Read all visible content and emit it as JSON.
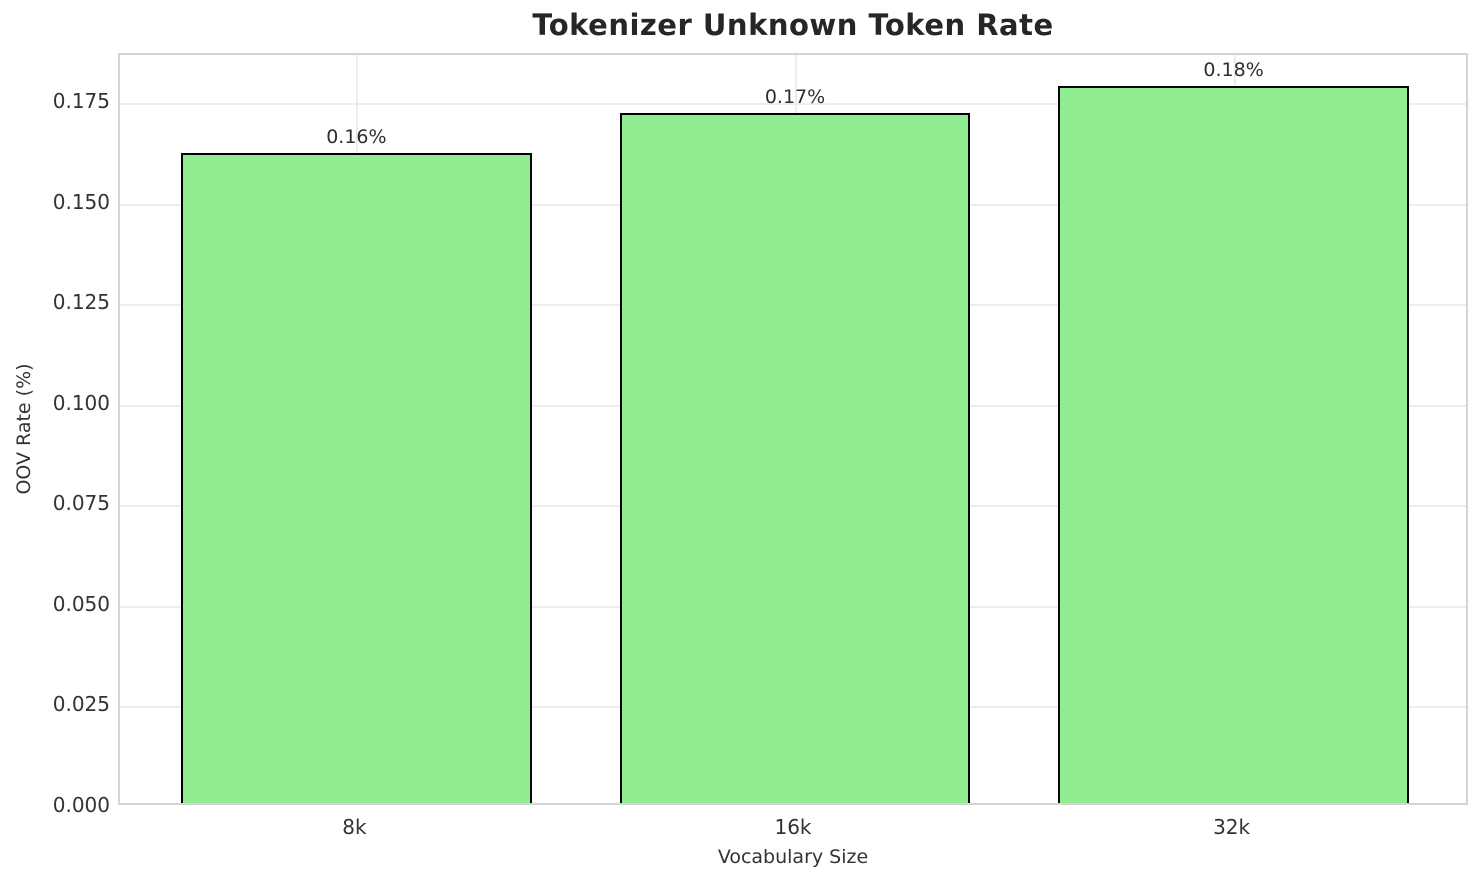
{
  "chart_data": {
    "type": "bar",
    "title": "Tokenizer Unknown Token Rate",
    "xlabel": "Vocabulary Size",
    "ylabel": "OOV Rate (%)",
    "categories": [
      "8k",
      "16k",
      "32k"
    ],
    "values": [
      0.1616,
      0.1715,
      0.1783
    ],
    "bar_labels": [
      "0.16%",
      "0.17%",
      "0.18%"
    ],
    "ylim": [
      0,
      0.187
    ],
    "yticks": [
      0.0,
      0.025,
      0.05,
      0.075,
      0.1,
      0.125,
      0.15,
      0.175
    ],
    "ytick_labels": [
      "0.000",
      "0.025",
      "0.050",
      "0.075",
      "0.100",
      "0.125",
      "0.150",
      "0.175"
    ],
    "grid": true,
    "legend_position": "none",
    "colors": {
      "bar_fill": "#90EE90",
      "bar_edge": "#000000",
      "grid": "#ededed",
      "spine": "#d4d4d4",
      "title_text": "#262626",
      "tick_text": "#333333",
      "background": "#ffffff"
    }
  }
}
